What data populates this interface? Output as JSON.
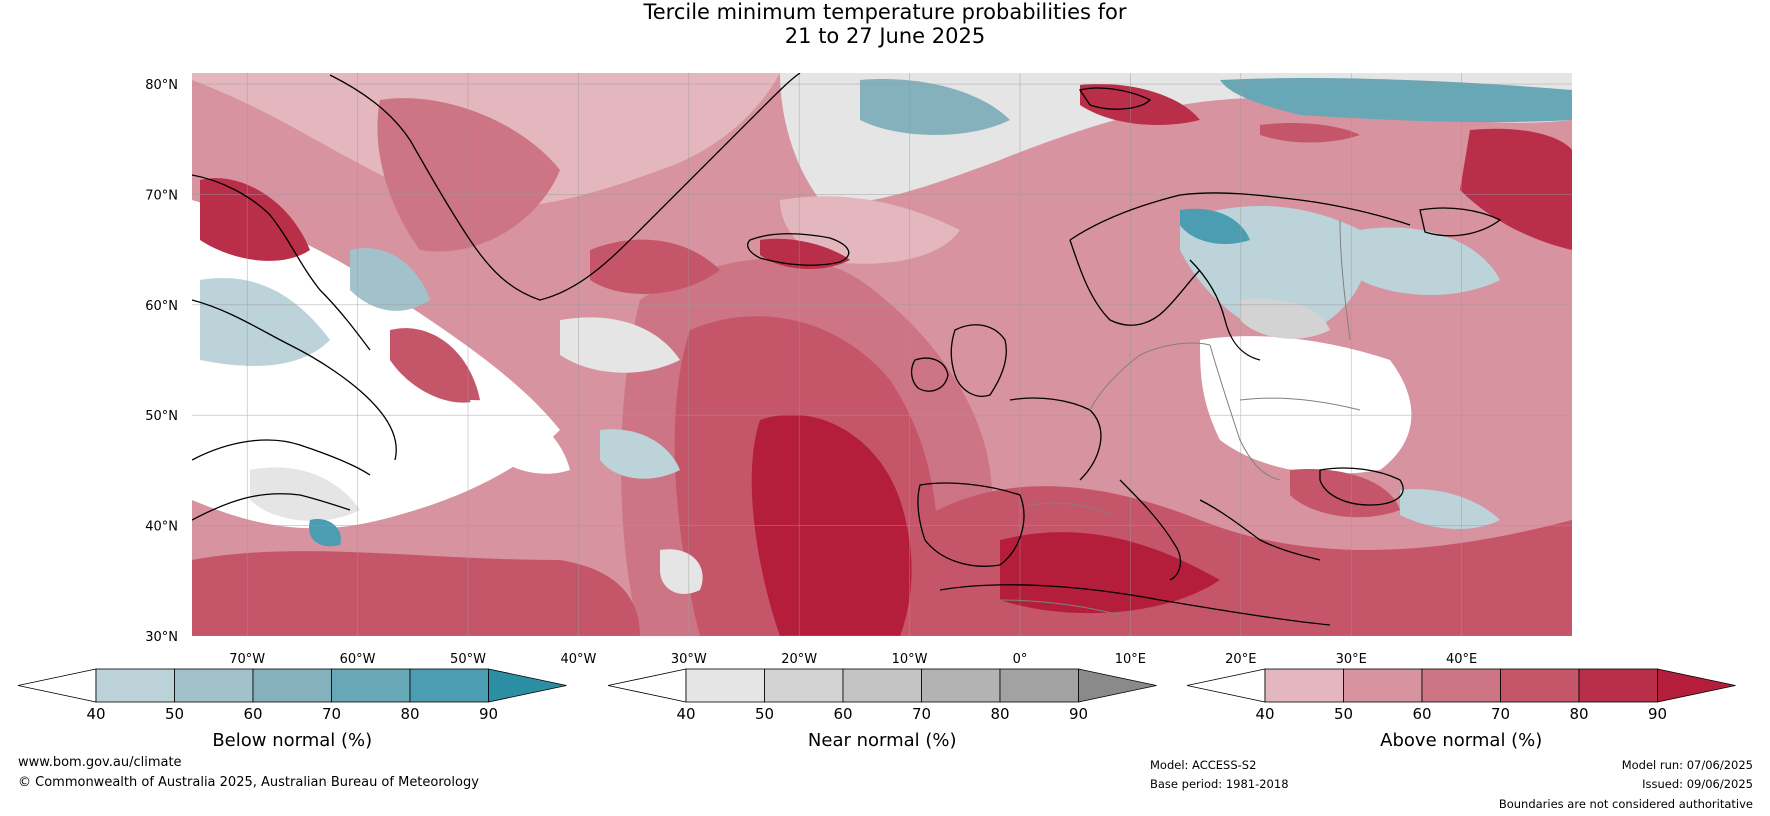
{
  "title": {
    "line1": "Tercile minimum temperature probabilities for",
    "line2": "21 to 27 June 2025"
  },
  "map": {
    "lat_ticks": [
      "80°N",
      "70°N",
      "60°N",
      "50°N",
      "40°N",
      "30°N"
    ],
    "lon_ticks": [
      "70°W",
      "60°W",
      "50°W",
      "40°W",
      "30°W",
      "20°W",
      "10°W",
      "0°",
      "10°E",
      "20°E",
      "30°E",
      "40°E"
    ],
    "extent": {
      "lon_min": -75,
      "lon_max": 50,
      "lat_min": 30,
      "lat_max": 81
    }
  },
  "colorbars": [
    {
      "name": "below",
      "title": "Below normal (%)",
      "ticks": [
        "40",
        "50",
        "60",
        "70",
        "80",
        "90"
      ],
      "colors": [
        "#ffffff",
        "#bcd3da",
        "#a2c2cb",
        "#85b1bd",
        "#68a7b5",
        "#4b9db1",
        "#2b8ea3"
      ]
    },
    {
      "name": "near",
      "title": "Near normal (%)",
      "ticks": [
        "40",
        "50",
        "60",
        "70",
        "80",
        "90"
      ],
      "colors": [
        "#ffffff",
        "#e5e5e5",
        "#d3d3d3",
        "#c3c3c3",
        "#b3b3b3",
        "#a2a2a2",
        "#8a8a8a"
      ]
    },
    {
      "name": "above",
      "title": "Above normal (%)",
      "ticks": [
        "40",
        "50",
        "60",
        "70",
        "80",
        "90"
      ],
      "colors": [
        "#ffffff",
        "#e4b6be",
        "#d7939f",
        "#cd7584",
        "#c5566a",
        "#b92e48",
        "#b41e3b"
      ]
    }
  ],
  "footer": {
    "website": "www.bom.gov.au/climate",
    "copyright": "© Commonwealth of Australia 2025, Australian Bureau of Meteorology",
    "model": "Model: ACCESS-S2",
    "base_period": "Base period: 1981-2018",
    "model_run": "Model run: 07/06/2025",
    "issued": "Issued: 09/06/2025",
    "disclaimer": "Boundaries are not considered authoritative"
  },
  "palette": {
    "ocean_warm": "#b41e3b",
    "warm_mid": "#c9566a",
    "warm_light": "#d7939f",
    "warm_pale": "#e4b6be",
    "cool_light": "#bcd3da",
    "cool_mid": "#85b1bd",
    "cool_dark": "#3a97ab",
    "near_light": "#e5e5e5",
    "near_mid": "#c8c8c8",
    "coastline": "#000000",
    "border": "#808080"
  }
}
